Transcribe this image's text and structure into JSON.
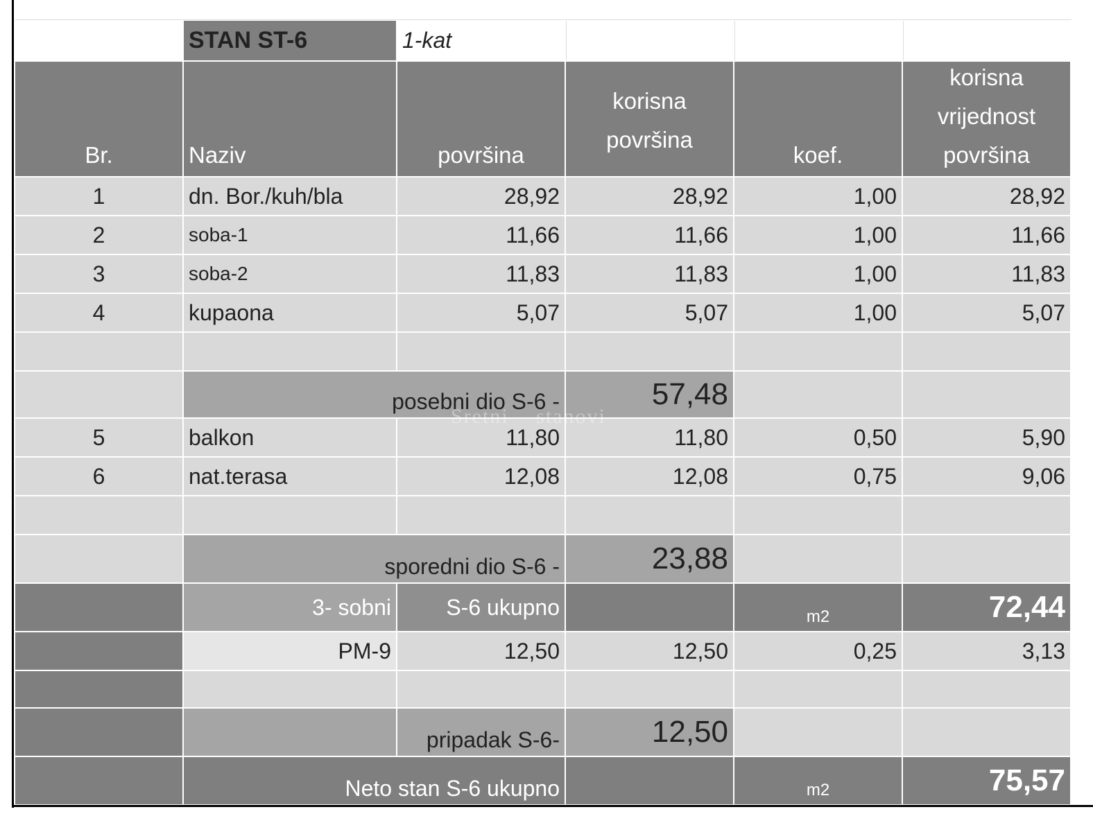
{
  "title_row": {
    "name": "STAN ST-6",
    "floor": "1-kat"
  },
  "header": [
    "Br.",
    "Naziv",
    "površina",
    "korisna površina",
    "koef.",
    "korisna vrijednost površina"
  ],
  "rooms": [
    [
      "1",
      "dn. Bor./kuh/bla",
      "28,92",
      "28,92",
      "1,00",
      "28,92"
    ],
    [
      "2",
      "soba-1",
      "11,66",
      "11,66",
      "1,00",
      "11,66"
    ],
    [
      "3",
      "soba-2",
      "11,83",
      "11,83",
      "1,00",
      "11,83"
    ],
    [
      "4",
      "kupaona",
      "5,07",
      "5,07",
      "1,00",
      "5,07"
    ]
  ],
  "posebni": {
    "label": "posebni dio S-6 -",
    "value": "57,48"
  },
  "watermark": "Sretni stanovi",
  "outdoor": [
    [
      "5",
      "balkon",
      "11,80",
      "11,80",
      "0,50",
      "5,90"
    ],
    [
      "6",
      "nat.terasa",
      "12,08",
      "12,08",
      "0,75",
      "9,06"
    ]
  ],
  "sporedni": {
    "label": "sporedni dio S-6 -",
    "value": "23,88"
  },
  "total": {
    "type": "3- sobni",
    "label": "S-6 ukupno",
    "unit": "m2",
    "value": "72,44"
  },
  "parking": [
    "PM-9",
    "12,50",
    "12,50",
    "0,25",
    "3,13"
  ],
  "pripadak": {
    "label": "pripadak S-6-",
    "value": "12,50"
  },
  "net": {
    "label": "Neto stan S-6 ukupno",
    "unit": "m2",
    "value": "75,57"
  }
}
